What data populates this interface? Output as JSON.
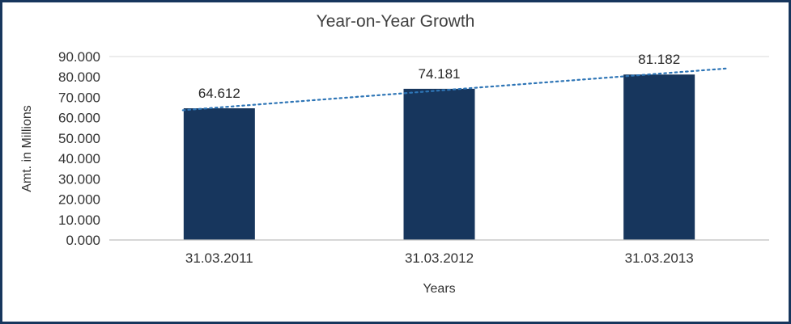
{
  "chart_data": {
    "type": "bar",
    "title": "Year-on-Year Growth",
    "xlabel": "Years",
    "ylabel": "Amt. in Millions",
    "categories": [
      "31.03.2011",
      "31.03.2012",
      "31.03.2013"
    ],
    "values": [
      64.612,
      74.181,
      81.182
    ],
    "data_labels": [
      "64.612",
      "74.181",
      "81.182"
    ],
    "ylim": [
      0,
      90
    ],
    "ytick_step": 10,
    "ytick_labels": [
      "0.000",
      "10.000",
      "20.000",
      "30.000",
      "40.000",
      "50.000",
      "60.000",
      "70.000",
      "80.000",
      "90.000"
    ],
    "legend_position": "none",
    "grid": "top-gridline-and-baseline-only",
    "trendline": {
      "type": "linear",
      "style": "dotted",
      "color": "#2E75B6"
    },
    "colors": {
      "bar": "#17365D",
      "frame_border": "#17365D",
      "axis_line": "#BFBFBF",
      "gridline": "#D9D9D9",
      "text": "#333333",
      "data_label_text": "#262626",
      "background": "#FFFFFF"
    }
  }
}
